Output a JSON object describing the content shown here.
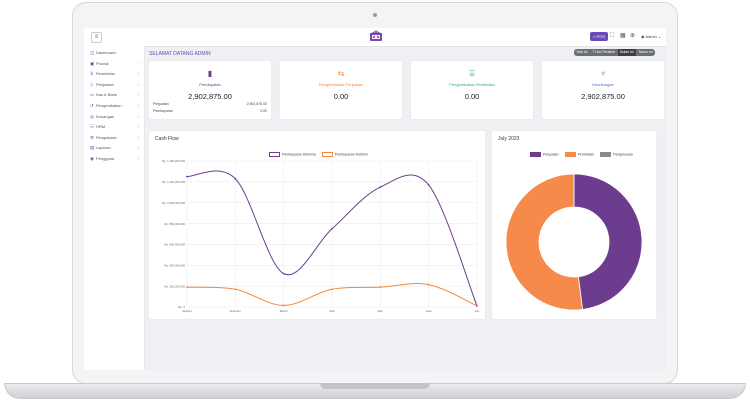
{
  "header": {
    "pos_label": "POS",
    "admin_label": "Admin",
    "icons": [
      "expand-icon",
      "grid-icon",
      "globe-icon",
      "user-icon"
    ]
  },
  "sidebar": {
    "items": [
      {
        "label": "Dashboard",
        "icon": "dashboard-icon",
        "has_children": false
      },
      {
        "label": "Produk",
        "icon": "box-icon",
        "has_children": true
      },
      {
        "label": "Pembelian",
        "icon": "cart-icon",
        "has_children": true
      },
      {
        "label": "Penjualan",
        "icon": "tag-icon",
        "has_children": true
      },
      {
        "label": "Kas & Bank",
        "icon": "wallet-icon",
        "has_children": true
      },
      {
        "label": "Pengembalian",
        "icon": "return-icon",
        "has_children": true
      },
      {
        "label": "Keuangan",
        "icon": "money-icon",
        "has_children": true
      },
      {
        "label": "HRM",
        "icon": "users-icon",
        "has_children": true
      },
      {
        "label": "Pengaturan",
        "icon": "settings-icon",
        "has_children": true
      },
      {
        "label": "Laporan",
        "icon": "report-icon",
        "has_children": true
      },
      {
        "label": "Pengguna",
        "icon": "user-icon",
        "has_children": true
      }
    ]
  },
  "welcome": "SELAMAT DATANG ADMIN",
  "filters": [
    {
      "label": "Hari ini",
      "active": false
    },
    {
      "label": "7 Hari Terakhir",
      "active": false
    },
    {
      "label": "Bulan ini",
      "active": true
    },
    {
      "label": "Tahun ini",
      "active": false
    }
  ],
  "cards": [
    {
      "label": "Pendapatan",
      "value": "2,902,875.00",
      "icon": "bar-chart-icon",
      "color": "#6c3d8e",
      "rows": [
        {
          "label": "Penjualan",
          "value": "2,902,875.00"
        },
        {
          "label": "Pembayaran",
          "value": "0.00"
        }
      ]
    },
    {
      "label": "Pengembalian Penjualan",
      "value": "0.00",
      "icon": "return-icon",
      "color": "#f0883e"
    },
    {
      "label": "Pengembalian Pembelian",
      "value": "0.00",
      "icon": "basket-icon",
      "color": "#2ca58d"
    },
    {
      "label": "Keuntungan",
      "value": "2,902,875.00",
      "icon": "trophy-icon",
      "color": "#3f6ad8"
    }
  ],
  "cash_flow": {
    "title": "Cash Flow"
  },
  "donut": {
    "title": "July 2023"
  },
  "chart_data": [
    {
      "type": "line",
      "title": "",
      "x": [
        "January",
        "February",
        "March",
        "April",
        "May",
        "June",
        "July"
      ],
      "ylim": [
        0,
        1400000
      ],
      "yticks": [
        0,
        200000,
        400000,
        600000,
        800000,
        1000000,
        1200000,
        1400000
      ],
      "ytick_labels": [
        "Rp. 0",
        "Rp. 200,000,000",
        "Rp. 400,000,000",
        "Rp. 600,000,000",
        "Rp. 800,000,000",
        "Rp. 1,000,000,000",
        "Rp. 1,200,000,000",
        "Rp. 1,400,000,000"
      ],
      "grid": true,
      "legend": "top-center",
      "series": [
        {
          "name": "Pembayaran Diterima",
          "color": "#6c3d8e",
          "values": [
            1250000,
            1230000,
            320000,
            750000,
            1150000,
            1170000,
            10000
          ]
        },
        {
          "name": "Pembayaran Terkirim",
          "color": "#f0883e",
          "values": [
            190000,
            170000,
            15000,
            170000,
            190000,
            215000,
            10000
          ]
        }
      ]
    },
    {
      "type": "pie",
      "title": "July 2023",
      "legend": "top-center",
      "labels": [
        "Penjualan",
        "Pembelian",
        "Pengeluaran"
      ],
      "values": [
        48,
        52,
        0
      ],
      "colors": [
        "#6c3d8e",
        "#f58a4b",
        "#8a8a8a"
      ]
    }
  ]
}
